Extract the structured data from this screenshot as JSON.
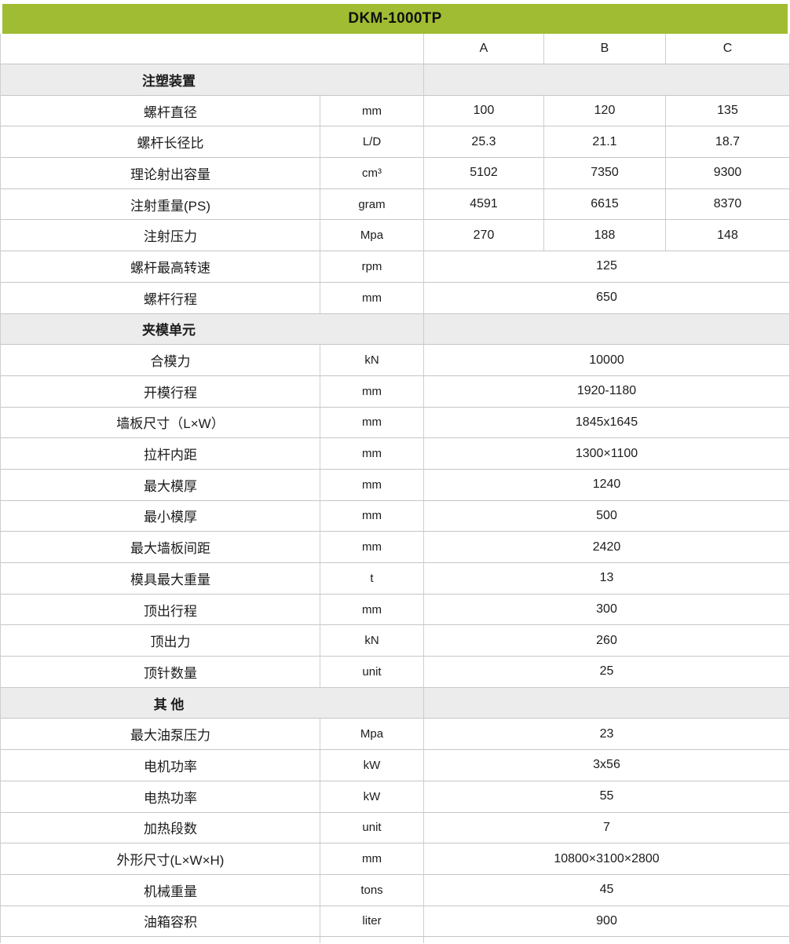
{
  "title": "DKM-1000TP",
  "columns": [
    "A",
    "B",
    "C"
  ],
  "colors": {
    "header_green": "#a0bc32",
    "section_gray": "#ececec",
    "border": "#c6c6c6"
  },
  "sections": [
    {
      "header": "注塑装置",
      "rows": [
        {
          "label": "螺杆直径",
          "unit": "mm",
          "values": [
            "100",
            "120",
            "135"
          ]
        },
        {
          "label": "螺杆长径比",
          "unit": "L/D",
          "values": [
            "25.3",
            "21.1",
            "18.7"
          ]
        },
        {
          "label": "理论射出容量",
          "unit": "cm³",
          "values": [
            "5102",
            "7350",
            "9300"
          ]
        },
        {
          "label": "注射重量(PS)",
          "unit": "gram",
          "values": [
            "4591",
            "6615",
            "8370"
          ]
        },
        {
          "label": "注射压力",
          "unit": "Mpa",
          "values": [
            "270",
            "188",
            "148"
          ]
        },
        {
          "label": "螺杆最高转速",
          "unit": "rpm",
          "value": "125"
        },
        {
          "label": "螺杆行程",
          "unit": "mm",
          "value": "650"
        }
      ]
    },
    {
      "header": "夹模单元",
      "rows": [
        {
          "label": "合模力",
          "unit": "kN",
          "value": "10000"
        },
        {
          "label": "开模行程",
          "unit": "mm",
          "value": "1920-1180"
        },
        {
          "label": "墙板尺寸（L×W）",
          "unit": "mm",
          "value": "1845x1645"
        },
        {
          "label": "拉杆内距",
          "unit": "mm",
          "value": "1300×1100"
        },
        {
          "label": "最大模厚",
          "unit": "mm",
          "value": "1240"
        },
        {
          "label": "最小模厚",
          "unit": "mm",
          "value": "500"
        },
        {
          "label": "最大墙板间距",
          "unit": "mm",
          "value": "2420"
        },
        {
          "label": "模具最大重量",
          "unit": "t",
          "value": "13"
        },
        {
          "label": "顶出行程",
          "unit": "mm",
          "value": "300"
        },
        {
          "label": "顶出力",
          "unit": "kN",
          "value": "260"
        },
        {
          "label": "顶针数量",
          "unit": "unit",
          "value": "25"
        }
      ]
    },
    {
      "header": "其 他",
      "rows": [
        {
          "label": "最大油泵压力",
          "unit": "Mpa",
          "value": "23"
        },
        {
          "label": "电机功率",
          "unit": "kW",
          "value": "3x56"
        },
        {
          "label": "电热功率",
          "unit": "kW",
          "value": "55"
        },
        {
          "label": "加热段数",
          "unit": "unit",
          "value": "7"
        },
        {
          "label": "外形尺寸(L×W×H)",
          "unit": "mm",
          "value": "10800×3100×2800"
        },
        {
          "label": "机械重量",
          "unit": "tons",
          "value": "45"
        },
        {
          "label": "油箱容积",
          "unit": "liter",
          "value": "900"
        }
      ]
    }
  ]
}
